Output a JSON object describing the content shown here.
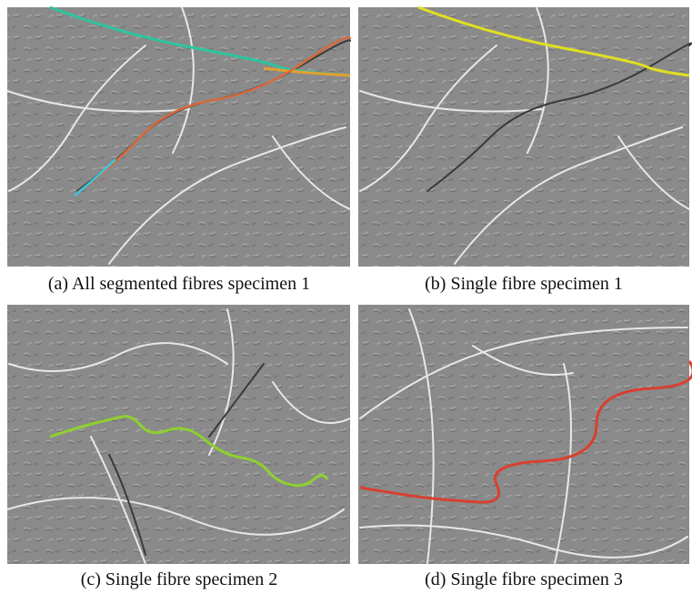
{
  "figure": {
    "panels": [
      {
        "caption": "(a) All segmented fibres specimen 1"
      },
      {
        "caption": "(b) Single fibre specimen 1"
      },
      {
        "caption": "(c) Single fibre specimen 2"
      },
      {
        "caption": "(d) Single fibre specimen 3"
      }
    ]
  }
}
